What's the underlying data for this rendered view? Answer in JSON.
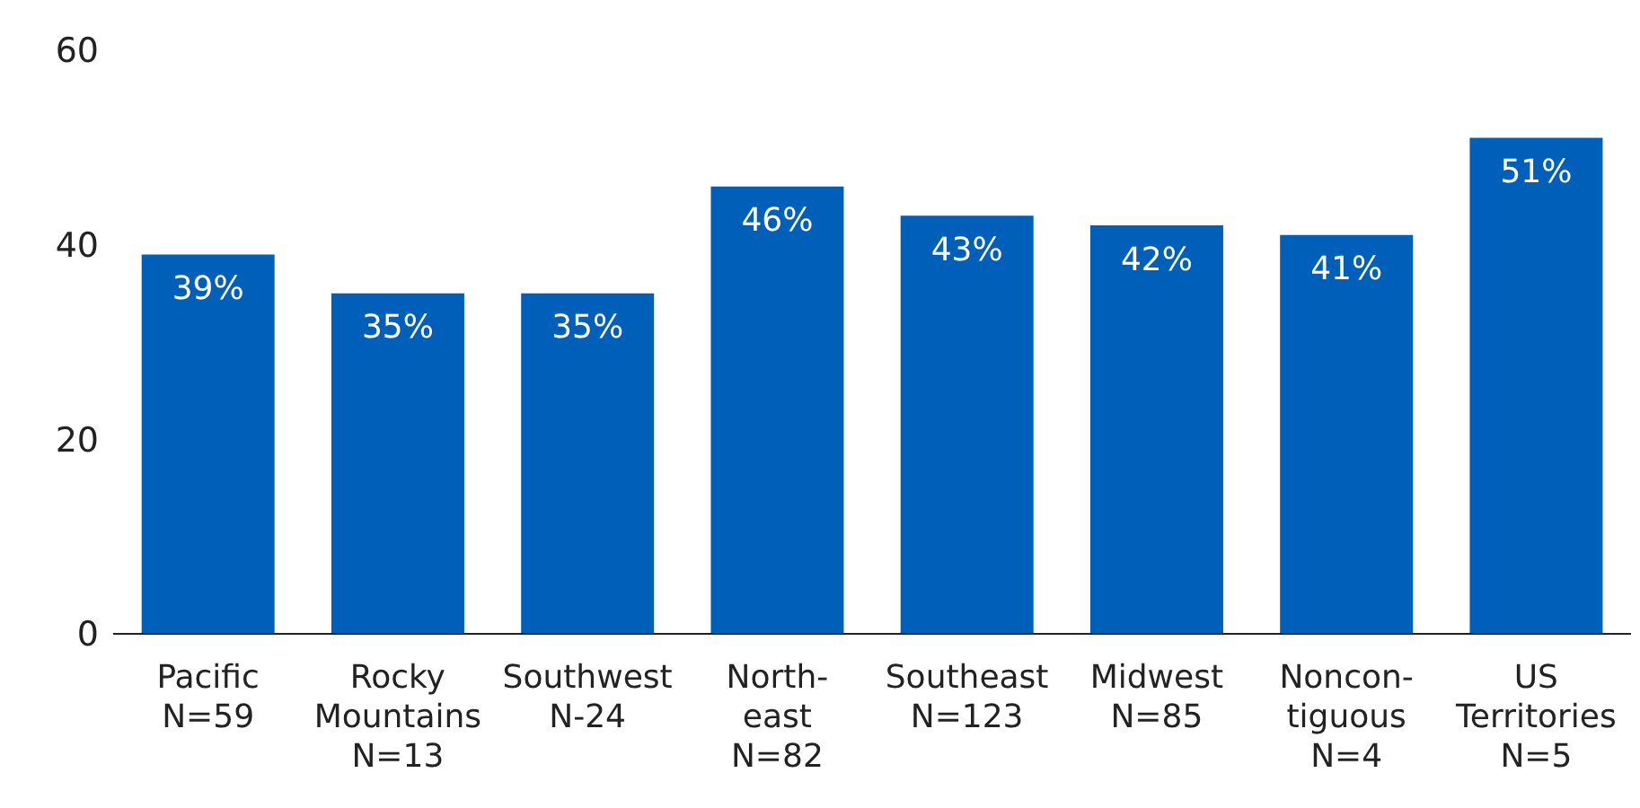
{
  "chart_data": {
    "type": "bar",
    "categories": [
      "Pacific\nN=59",
      "Rocky\nMountains\nN=13",
      "Southwest\nN-24",
      "North-\neast\nN=82",
      "Southeast\nN=123",
      "Midwest\nN=85",
      "Noncon-\ntiguous\nN=4",
      "US\nTerritories\nN=5"
    ],
    "values": [
      39,
      35,
      35,
      46,
      43,
      42,
      41,
      51
    ],
    "value_labels": [
      "39%",
      "35%",
      "35%",
      "46%",
      "43%",
      "42%",
      "41%",
      "51%"
    ],
    "color": "#0060b9",
    "ylim": [
      0,
      60
    ],
    "yticks": [
      0,
      20,
      40,
      60
    ],
    "grid": false,
    "legend": false
  }
}
